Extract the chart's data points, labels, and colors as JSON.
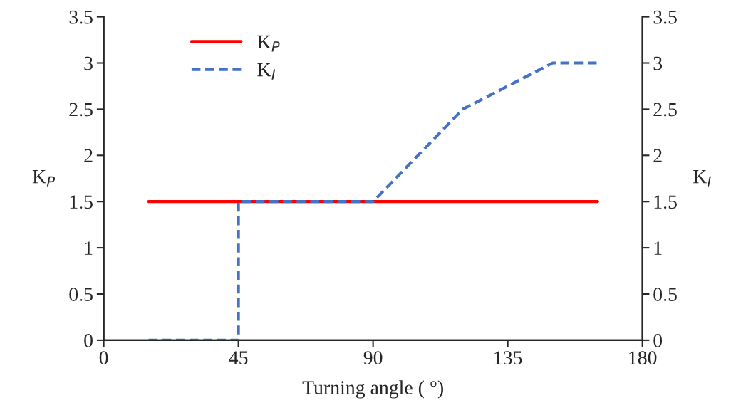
{
  "chart_data": {
    "type": "line",
    "xlabel": "Turning angle ( °)",
    "ylabel": "K$_{P}$",
    "y2label": "K$_{I}$",
    "xlim": [
      0,
      180
    ],
    "xticks": [
      0,
      45,
      90,
      135,
      180
    ],
    "ylim": [
      0,
      3.5
    ],
    "yticks": [
      0,
      0.5,
      1,
      1.5,
      2,
      2.5,
      3,
      3.5
    ],
    "y2lim": [
      0,
      3.5
    ],
    "y2ticks": [
      0,
      0.5,
      1,
      1.5,
      2,
      2.5,
      3,
      3.5
    ],
    "grid": false,
    "legend": "top left",
    "series": [
      {
        "name": "K$_{P}$",
        "color": "#ff0000",
        "line_style": "solid",
        "x": [
          15,
          165
        ],
        "values": [
          1.5,
          1.5
        ]
      },
      {
        "name": "K$_{I}$",
        "color": "#4472c4",
        "line_style": "dashed",
        "axis": "y2",
        "x": [
          15,
          45,
          45,
          90,
          120,
          150,
          165
        ],
        "values": [
          0,
          0,
          1.5,
          1.5,
          2.5,
          3,
          3
        ]
      }
    ]
  }
}
